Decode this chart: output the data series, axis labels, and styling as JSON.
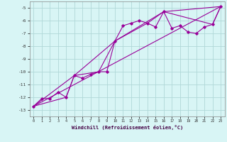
{
  "xlabel": "Windchill (Refroidissement éolien,°C)",
  "bg_color": "#d8f5f5",
  "grid_color": "#b0d8d8",
  "line_color": "#990099",
  "marker_color": "#990099",
  "xlim": [
    -0.5,
    23.5
  ],
  "ylim": [
    -13.5,
    -4.5
  ],
  "xticks": [
    0,
    1,
    2,
    3,
    4,
    5,
    6,
    7,
    8,
    9,
    10,
    11,
    12,
    13,
    14,
    15,
    16,
    17,
    18,
    19,
    20,
    21,
    22,
    23
  ],
  "yticks": [
    -13,
    -12,
    -11,
    -10,
    -9,
    -8,
    -7,
    -6,
    -5
  ],
  "series1_x": [
    0,
    1,
    2,
    3,
    4,
    5,
    6,
    7,
    8,
    9,
    10,
    11,
    12,
    13,
    14,
    15,
    16,
    17,
    18,
    19,
    20,
    21,
    22,
    23
  ],
  "series1_y": [
    -12.7,
    -12.1,
    -12.1,
    -11.6,
    -12.0,
    -10.3,
    -10.5,
    -10.2,
    -10.0,
    -10.0,
    -7.6,
    -6.4,
    -6.2,
    -6.0,
    -6.2,
    -6.5,
    -5.3,
    -6.6,
    -6.4,
    -6.9,
    -7.0,
    -6.5,
    -6.3,
    -4.9
  ],
  "series2_x": [
    0,
    4,
    5,
    8,
    10,
    14,
    16,
    22,
    23
  ],
  "series2_y": [
    -12.7,
    -12.0,
    -10.3,
    -10.0,
    -7.6,
    -6.2,
    -5.3,
    -6.3,
    -4.9
  ],
  "series3_x": [
    0,
    23
  ],
  "series3_y": [
    -12.7,
    -4.9
  ],
  "series4_x": [
    0,
    5,
    10,
    16,
    23
  ],
  "series4_y": [
    -12.7,
    -10.3,
    -7.6,
    -5.3,
    -4.9
  ]
}
